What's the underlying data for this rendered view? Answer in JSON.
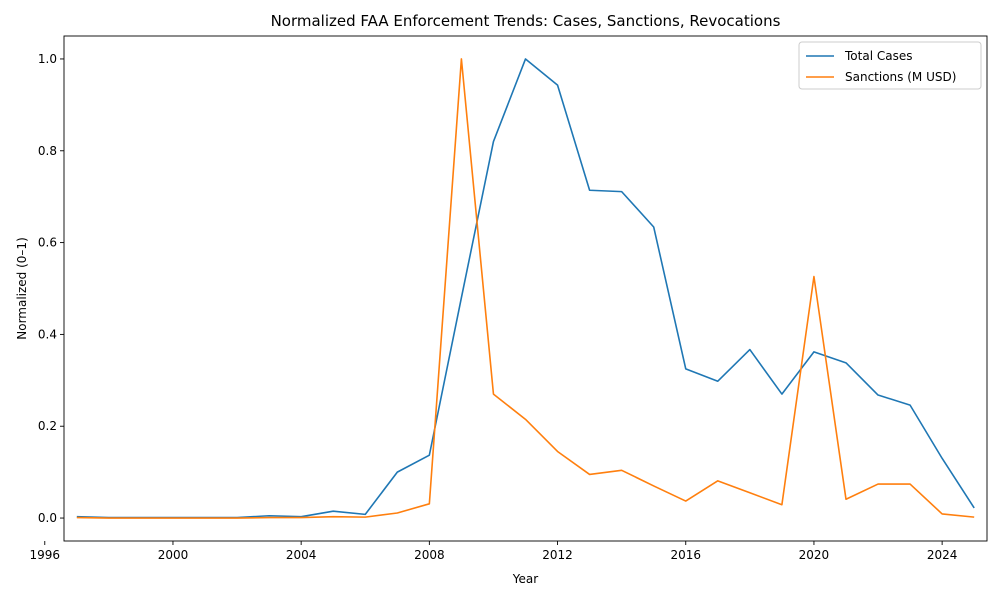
{
  "chart_data": {
    "type": "line",
    "title": "Normalized FAA Enforcement Trends: Cases, Sanctions, Revocations",
    "xlabel": "Year",
    "ylabel": "Normalized (0–1)",
    "xlim": [
      1996.6,
      2025.4
    ],
    "ylim": [
      -0.05,
      1.05
    ],
    "xticks": [
      1996,
      2000,
      2004,
      2008,
      2012,
      2016,
      2020,
      2024
    ],
    "yticks": [
      0.0,
      0.2,
      0.4,
      0.6,
      0.8,
      1.0
    ],
    "grid": false,
    "legend_position": "top-right",
    "x": [
      1997,
      1998,
      1999,
      2000,
      2001,
      2002,
      2003,
      2004,
      2005,
      2006,
      2007,
      2008,
      2009,
      2010,
      2011,
      2012,
      2013,
      2014,
      2015,
      2016,
      2017,
      2018,
      2019,
      2020,
      2021,
      2022,
      2023,
      2024,
      2025
    ],
    "series": [
      {
        "name": "Total Cases",
        "color": "#1f77b4",
        "values": [
          0.003,
          0.001,
          0.001,
          0.001,
          0.001,
          0.001,
          0.005,
          0.003,
          0.015,
          0.008,
          0.1,
          0.137,
          0.48,
          0.82,
          1.0,
          0.943,
          0.714,
          0.711,
          0.634,
          0.325,
          0.298,
          0.367,
          0.27,
          0.362,
          0.338,
          0.268,
          0.246,
          0.13,
          0.022
        ]
      },
      {
        "name": "Sanctions (M USD)",
        "color": "#ff7f0e",
        "values": [
          0.001,
          0.0,
          0.0,
          0.0,
          0.0,
          0.0,
          0.001,
          0.001,
          0.003,
          0.002,
          0.011,
          0.031,
          1.0,
          0.27,
          0.215,
          0.145,
          0.095,
          0.104,
          0.07,
          0.037,
          0.081,
          0.055,
          0.029,
          0.526,
          0.041,
          0.074,
          0.074,
          0.009,
          0.002
        ]
      }
    ]
  }
}
